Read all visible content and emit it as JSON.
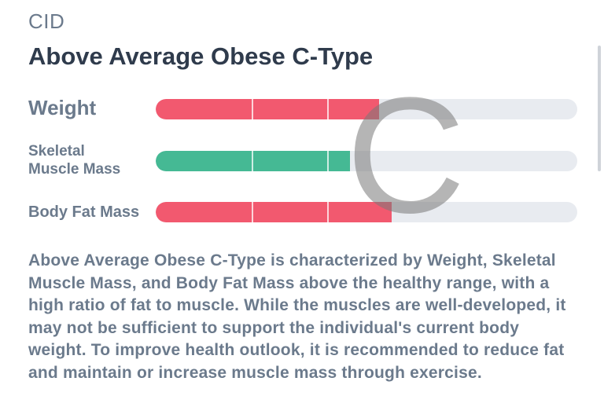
{
  "section": {
    "label": "CID"
  },
  "result": {
    "type_name": "Above Average Obese C-Type",
    "grade_letter": "C"
  },
  "bars": [
    {
      "label": "Weight",
      "level": 0.53,
      "color": "#f2596f"
    },
    {
      "label": "Skeletal\nMuscle Mass",
      "level": 0.46,
      "color": "#45b994"
    },
    {
      "label": "Body Fat Mass",
      "level": 0.56,
      "color": "#f2596f"
    }
  ],
  "bar_track_color": "#e8ebf0",
  "description": "Above Average Obese C-Type is characterized by Weight, Skeletal Muscle Mass, and Body Fat Mass above the healthy range, with a high ratio of fat to muscle. While the muscles are well-developed, it may not be sufficient to support the individual's current body weight. To improve health outlook, it is recommended to reduce fat and maintain or increase muscle mass through exercise."
}
